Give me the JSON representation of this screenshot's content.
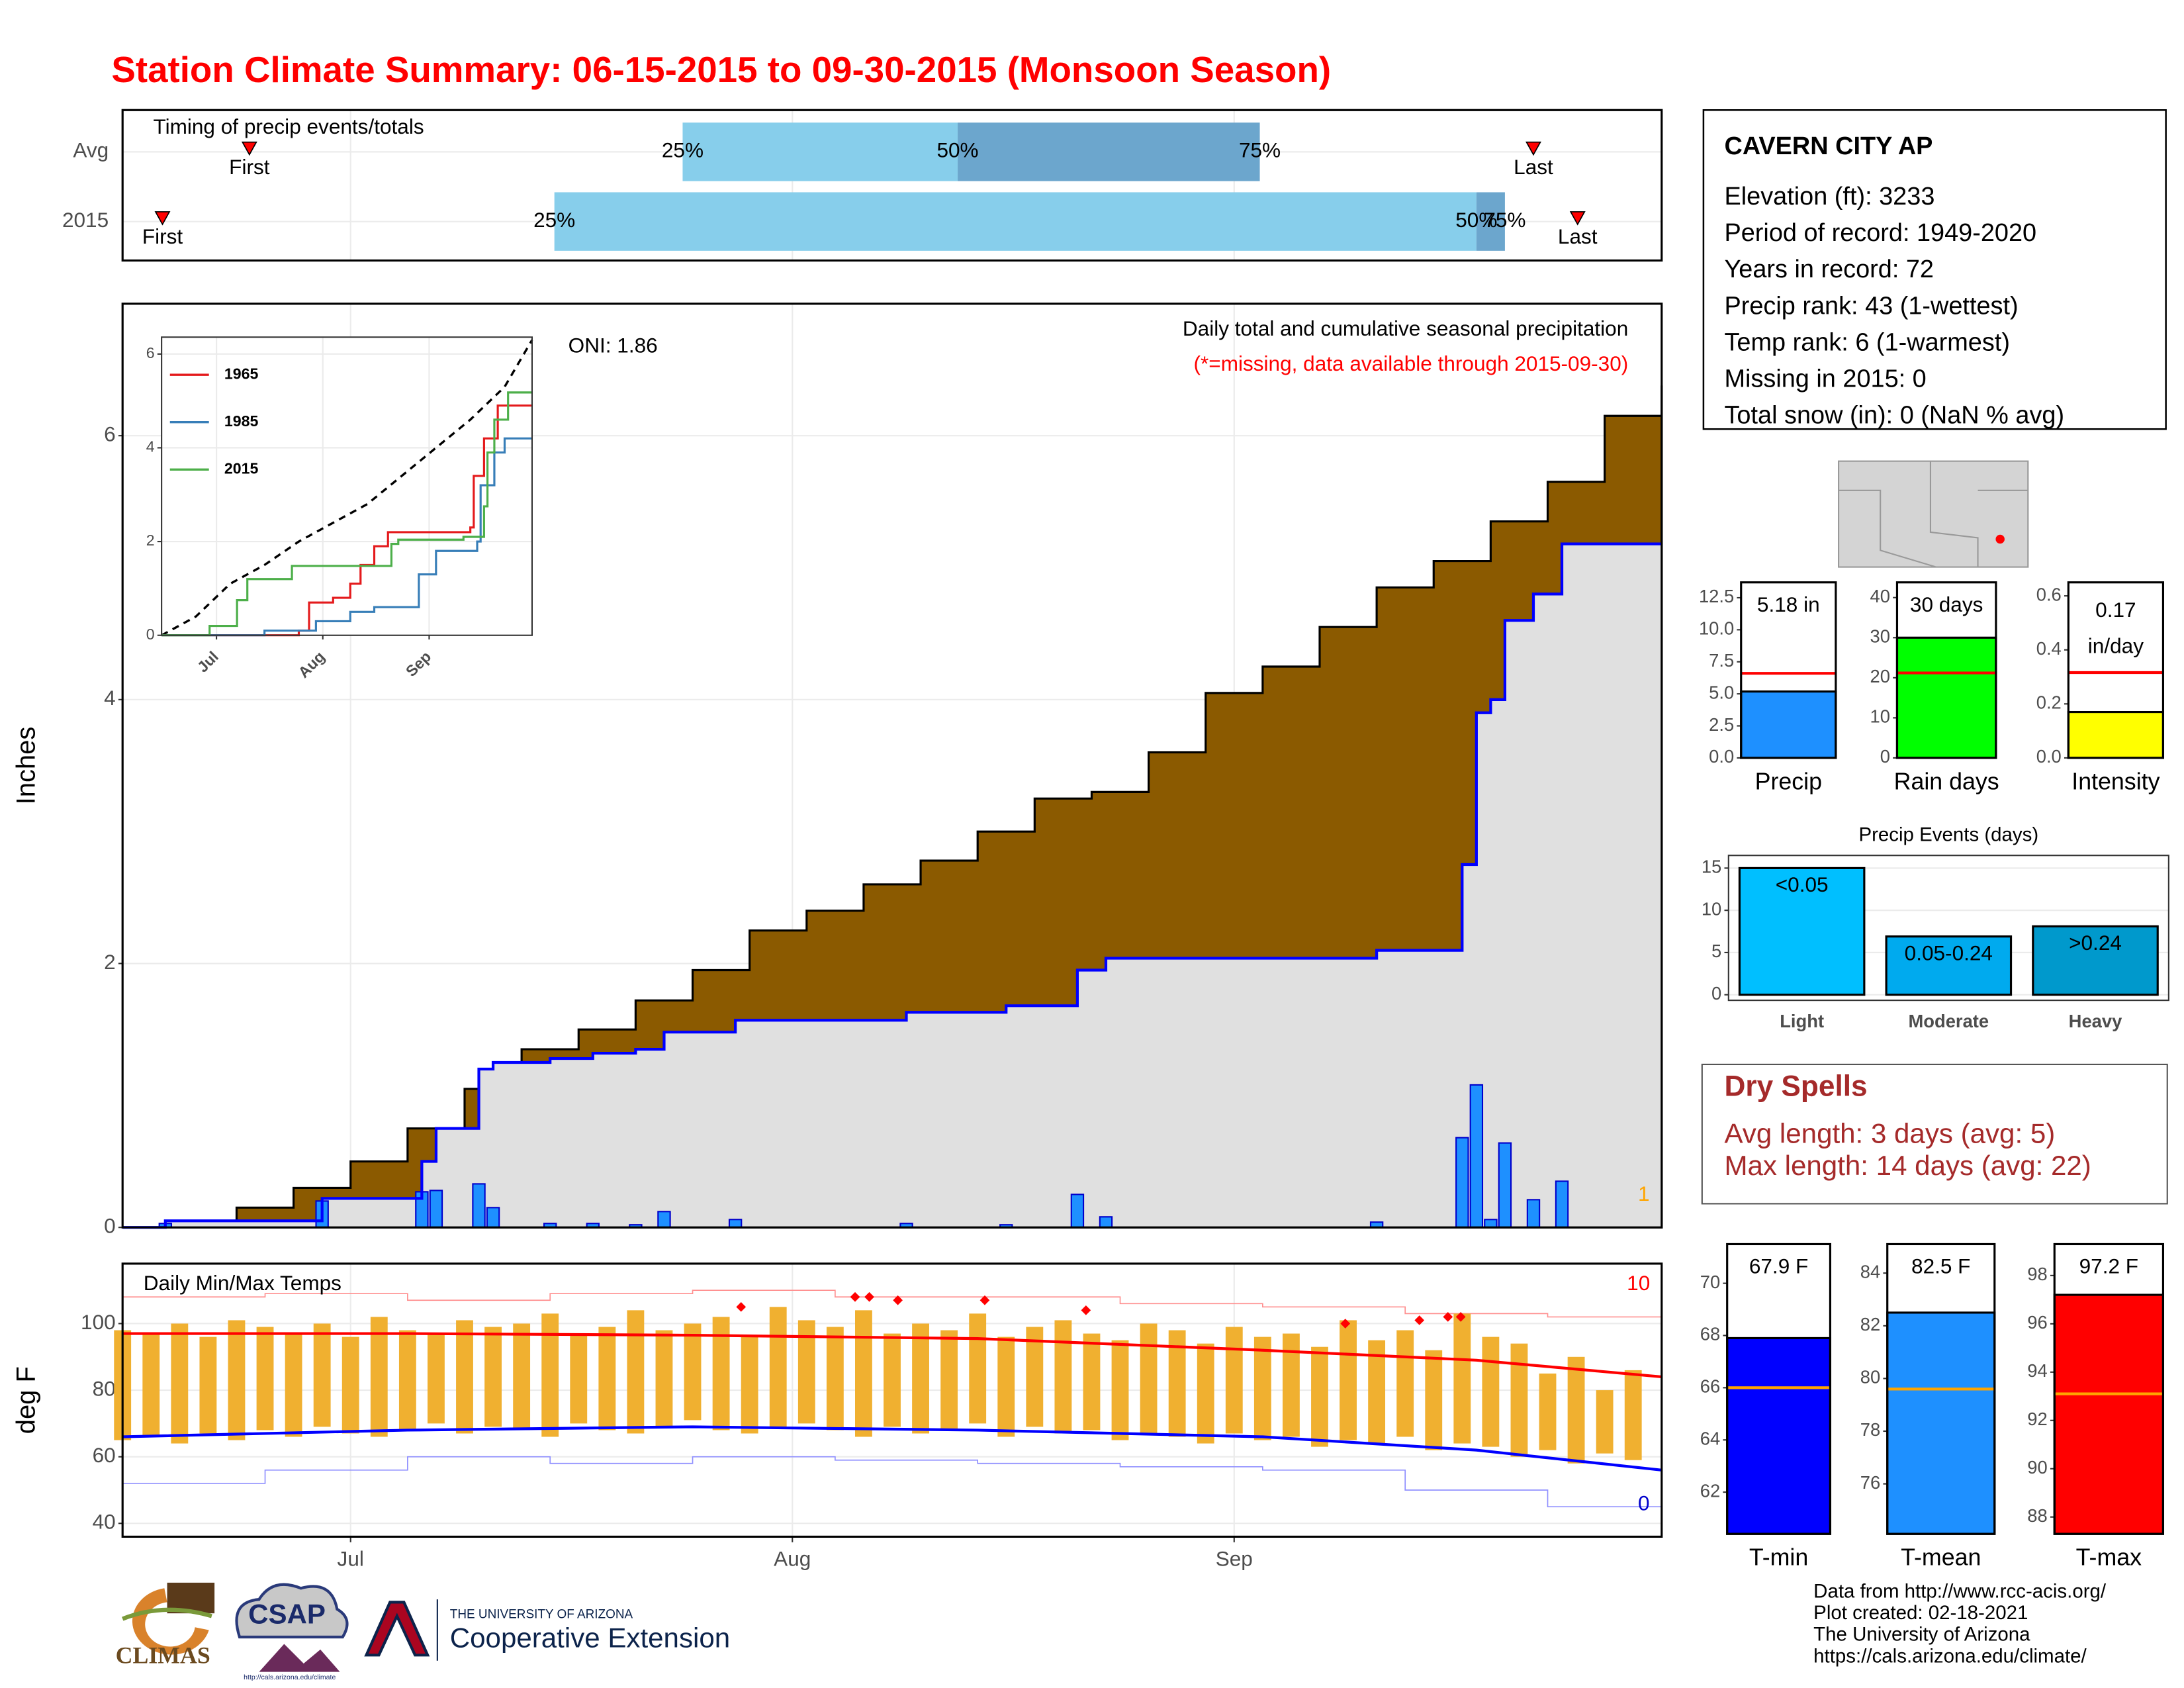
{
  "title": "Station Climate Summary: 06-15-2015 to 09-30-2015 (Monsoon Season)",
  "station": {
    "name": "CAVERN CITY AP",
    "lines": [
      "Elevation (ft): 3233",
      "Period of record: 1949-2020",
      "Years in record: 72",
      "Precip rank: 43 (1-wettest)",
      "Temp rank: 6 (1-warmest)",
      "Missing in 2015: 0",
      "Total snow (in): 0 (NaN % avg)"
    ]
  },
  "dry_spells": {
    "title": "Dry Spells",
    "lines": [
      "Avg length: 3 days (avg: 5)",
      "Max length: 14 days (avg: 22)"
    ]
  },
  "footer": [
    "Data from http://www.rcc-acis.org/",
    "Plot created: 02-18-2021",
    "The University of Arizona",
    "https://cals.arizona.edu/climate/"
  ],
  "logos": {
    "climas": "CLIMAS",
    "csap": "CSAP",
    "csap_url": "http://cals.arizona.edu/climate",
    "university": "THE UNIVERSITY OF ARIZONA",
    "extension": "Cooperative Extension"
  },
  "chart_data": [
    {
      "type": "timing",
      "title": "Timing of precip events/totals",
      "categories": [
        "Avg",
        "2015"
      ],
      "xlim": [
        0,
        108
      ],
      "xticks": [
        16,
        47,
        78
      ],
      "marker_labels": [
        "First",
        "Last"
      ],
      "quartile_labels": [
        "25%",
        "50%",
        "75%"
      ],
      "colors": [
        "#87ceeb",
        "#6ca6cd"
      ],
      "marker_color": "#ff0000",
      "rows": [
        {
          "first": 8.9,
          "last": 99,
          "quartiles": [
            39.3,
            58.6,
            79.8
          ]
        },
        {
          "first": 2.8,
          "last": 102.1,
          "quartiles": [
            30.3,
            95,
            97
          ]
        }
      ]
    },
    {
      "type": "area",
      "title": "Daily total and cumulative seasonal precipitation",
      "subtitle": "(*=missing, data available through 2015-09-30)",
      "annotation": "ONI: 1.86",
      "ylabel": "Inches",
      "missing_count": 1,
      "xlim": [
        0,
        108
      ],
      "xticks": [
        16,
        47,
        78
      ],
      "ylim": [
        0,
        7
      ],
      "yticks": [
        0,
        2,
        4,
        6
      ],
      "grid": true,
      "normal": {
        "color": "#8b5a00",
        "x": [
          0,
          4,
          8,
          12,
          16,
          20,
          24,
          28,
          32,
          36,
          40,
          44,
          48,
          52,
          56,
          60,
          64,
          68,
          72,
          76,
          80,
          84,
          88,
          92,
          96,
          100,
          104,
          108
        ],
        "values": [
          0,
          0.05,
          0.15,
          0.3,
          0.5,
          0.75,
          1.05,
          1.35,
          1.5,
          1.72,
          1.95,
          2.25,
          2.4,
          2.6,
          2.78,
          3.0,
          3.25,
          3.3,
          3.6,
          4.05,
          4.25,
          4.55,
          4.85,
          5.05,
          5.35,
          5.65,
          6.15,
          6.38
        ]
      },
      "cumulative": {
        "color": "#0000ff",
        "fill": "#e0e0e0",
        "x": [
          0,
          3,
          14,
          21,
          22,
          25,
          26,
          30,
          33,
          36,
          38,
          43,
          55,
          62,
          67,
          69,
          88,
          94,
          95,
          96,
          97,
          99,
          101,
          108
        ],
        "values": [
          0,
          0.05,
          0.22,
          0.5,
          0.75,
          1.2,
          1.25,
          1.28,
          1.32,
          1.35,
          1.48,
          1.57,
          1.63,
          1.68,
          1.95,
          2.04,
          2.1,
          2.75,
          3.9,
          4.0,
          4.6,
          4.8,
          5.18,
          5.18
        ]
      },
      "daily": {
        "color": "#1e90ff",
        "x": [
          3,
          14,
          21,
          22,
          25,
          26,
          30,
          33,
          36,
          38,
          43,
          55,
          62,
          67,
          69,
          88,
          94,
          95,
          96,
          97,
          99,
          101
        ],
        "values": [
          0.03,
          0.2,
          0.27,
          0.28,
          0.33,
          0.15,
          0.03,
          0.03,
          0.02,
          0.12,
          0.06,
          0.03,
          0.02,
          0.25,
          0.08,
          0.04,
          0.68,
          1.08,
          0.06,
          0.64,
          0.21,
          0.35
        ]
      }
    },
    {
      "type": "line",
      "legend": "top-left",
      "xlim": [
        0,
        108
      ],
      "ylim": [
        0,
        6.36
      ],
      "yticks": [
        0,
        2,
        4,
        6
      ],
      "grid": true,
      "xticks": [
        {
          "value": 16,
          "label": "Jul"
        },
        {
          "value": 47,
          "label": "Aug"
        },
        {
          "value": 78,
          "label": "Sep"
        }
      ],
      "normal": {
        "color": "#000000",
        "x": [
          0,
          10,
          20,
          30,
          40,
          50,
          60,
          70,
          80,
          90,
          100,
          108
        ],
        "values": [
          0,
          0.4,
          1.1,
          1.5,
          2.0,
          2.4,
          2.8,
          3.4,
          4.0,
          4.6,
          5.3,
          6.3
        ]
      },
      "series": [
        {
          "name": "1965",
          "color": "#e41a1c",
          "x": [
            0,
            40,
            43,
            50,
            55,
            58,
            62,
            66,
            90,
            91,
            94,
            98,
            108
          ],
          "values": [
            0,
            0.1,
            0.7,
            0.8,
            1.1,
            1.5,
            1.9,
            2.2,
            2.3,
            3.4,
            4.2,
            4.9,
            4.9
          ]
        },
        {
          "name": "1985",
          "color": "#377eb8",
          "x": [
            0,
            30,
            45,
            55,
            62,
            75,
            80,
            92,
            93,
            97,
            100,
            108
          ],
          "values": [
            0,
            0.1,
            0.3,
            0.5,
            0.6,
            1.3,
            1.8,
            2.0,
            3.2,
            3.9,
            4.2,
            4.2
          ]
        },
        {
          "name": "2015",
          "color": "#4daf4a",
          "x": [
            0,
            14,
            22,
            25,
            38,
            67,
            69,
            88,
            94,
            95,
            97,
            101,
            108
          ],
          "values": [
            0,
            0.2,
            0.75,
            1.2,
            1.48,
            1.95,
            2.04,
            2.1,
            2.75,
            3.9,
            4.6,
            5.18,
            5.18
          ]
        }
      ]
    },
    {
      "type": "temp-range",
      "title": "Daily Min/Max Temps",
      "ylabel": "deg F",
      "xlim": [
        0,
        108
      ],
      "ylim": [
        36,
        118
      ],
      "yticks": [
        40,
        60,
        80,
        100
      ],
      "grid": true,
      "xticks": [
        {
          "value": 16,
          "label": "Jul"
        },
        {
          "value": 47,
          "label": "Aug"
        },
        {
          "value": 78,
          "label": "Sep"
        }
      ],
      "color": "#f0b030",
      "record_high_count": 10,
      "record_low_count": 0,
      "x": [
        0,
        2,
        4,
        6,
        8,
        10,
        12,
        14,
        16,
        18,
        20,
        22,
        24,
        26,
        28,
        30,
        32,
        34,
        36,
        38,
        40,
        42,
        44,
        46,
        48,
        50,
        52,
        54,
        56,
        58,
        60,
        62,
        64,
        66,
        68,
        70,
        72,
        74,
        76,
        78,
        80,
        82,
        84,
        86,
        88,
        90,
        92,
        94,
        96,
        98,
        100,
        102,
        104,
        106
      ],
      "max": [
        98,
        97,
        100,
        96,
        101,
        99,
        97,
        100,
        96,
        102,
        98,
        97,
        101,
        99,
        100,
        103,
        97,
        99,
        104,
        98,
        100,
        102,
        96,
        105,
        101,
        99,
        104,
        97,
        100,
        98,
        103,
        96,
        99,
        101,
        97,
        95,
        100,
        98,
        94,
        99,
        96,
        97,
        93,
        101,
        95,
        98,
        92,
        103,
        96,
        94,
        85,
        90,
        80,
        86
      ],
      "min": [
        65,
        66,
        64,
        67,
        65,
        68,
        66,
        69,
        67,
        66,
        68,
        70,
        67,
        69,
        68,
        66,
        70,
        68,
        67,
        69,
        71,
        68,
        67,
        69,
        70,
        68,
        66,
        69,
        67,
        68,
        70,
        66,
        69,
        67,
        68,
        65,
        67,
        66,
        64,
        67,
        65,
        66,
        63,
        65,
        64,
        66,
        62,
        64,
        63,
        60,
        62,
        58,
        61,
        59
      ],
      "avg_max": {
        "color": "#ff0000",
        "x": [
          0,
          20,
          40,
          60,
          80,
          95,
          108
        ],
        "values": [
          97,
          97,
          96.5,
          95.5,
          92,
          89,
          84
        ]
      },
      "avg_min": {
        "color": "#0000ff",
        "x": [
          0,
          20,
          40,
          60,
          80,
          95,
          108
        ],
        "values": [
          66,
          68,
          69,
          68,
          66,
          62,
          56
        ]
      },
      "record_max": {
        "color": "#ff9090",
        "x": [
          0,
          10,
          20,
          30,
          40,
          50,
          60,
          70,
          80,
          90,
          100,
          108
        ],
        "values": [
          108,
          109,
          107,
          109,
          110,
          108,
          108,
          106,
          105,
          103,
          102,
          101
        ]
      },
      "record_min": {
        "color": "#9090ff",
        "x": [
          0,
          10,
          20,
          30,
          40,
          50,
          60,
          70,
          80,
          90,
          100,
          108
        ],
        "values": [
          52,
          56,
          60,
          58,
          60,
          59,
          58,
          57,
          56,
          50,
          45,
          43
        ]
      },
      "record_highs": {
        "color": "#ff0000",
        "x": [
          43.4,
          51.4,
          52.4,
          54.4,
          60.5,
          67.6,
          85.8,
          91,
          93,
          93.9
        ],
        "values": [
          105,
          108,
          108,
          107,
          107,
          104,
          100,
          101,
          102,
          102
        ]
      }
    },
    {
      "type": "bar",
      "categories": [
        "Precip"
      ],
      "values": [
        5.18
      ],
      "value_labels": [
        "5.18 in"
      ],
      "average": 6.6,
      "average_color": "#ff0000",
      "colors": [
        "#1e90ff"
      ],
      "ylim": [
        0,
        13.7
      ],
      "yticks": [
        {
          "value": 0,
          "label": "0.0"
        },
        2.5,
        {
          "value": 5,
          "label": "5.0"
        },
        7.5,
        {
          "value": 10,
          "label": "10.0"
        },
        12.5
      ]
    },
    {
      "type": "bar",
      "categories": [
        "Rain days"
      ],
      "values": [
        30
      ],
      "value_labels": [
        "30 days"
      ],
      "average": 21.2,
      "average_color": "#ff0000",
      "colors": [
        "#00ff00"
      ],
      "ylim": [
        0,
        43.8
      ],
      "yticks": [
        0,
        10,
        20,
        30,
        40
      ]
    },
    {
      "type": "bar",
      "categories": [
        "Intensity"
      ],
      "values": [
        0.17
      ],
      "value_labels": [
        "0.17 in/day"
      ],
      "average": 0.316,
      "average_color": "#ff0000",
      "colors": [
        "#ffff00"
      ],
      "ylim": [
        0,
        0.65
      ],
      "yticks": [
        {
          "value": 0,
          "label": "0.0"
        },
        0.2,
        0.4,
        0.6
      ]
    },
    {
      "type": "bar",
      "title": "Precip Events (days)",
      "categories": [
        "Light",
        "Moderate",
        "Heavy"
      ],
      "values": [
        15,
        6.9,
        8.1
      ],
      "bar_labels": [
        "<0.05",
        "0.05-0.24",
        ">0.24"
      ],
      "colors": [
        "#00bfff",
        "#00aaee",
        "#0099cc"
      ],
      "ylim": [
        -0.66,
        16.5
      ],
      "yticks": [
        0,
        5,
        10,
        15
      ],
      "grid": true
    },
    {
      "type": "bar",
      "categories": [
        "T-min"
      ],
      "values": [
        67.9
      ],
      "value_labels": [
        "67.9 F"
      ],
      "average": 66,
      "average_color": "#ffa500",
      "colors": [
        "#0000ff"
      ],
      "ylim": [
        60.4,
        71.5
      ],
      "yticks": [
        62,
        64,
        66,
        68,
        70
      ]
    },
    {
      "type": "bar",
      "categories": [
        "T-mean"
      ],
      "values": [
        82.5
      ],
      "value_labels": [
        "82.5 F"
      ],
      "average": 79.6,
      "average_color": "#ffa500",
      "colors": [
        "#1e90ff"
      ],
      "ylim": [
        74.1,
        85.1
      ],
      "yticks": [
        76,
        78,
        80,
        82,
        84
      ]
    },
    {
      "type": "bar",
      "categories": [
        "T-max"
      ],
      "values": [
        97.2
      ],
      "value_labels": [
        "97.2 F"
      ],
      "average": 93.1,
      "average_color": "#ffa500",
      "colors": [
        "#ff0000"
      ],
      "ylim": [
        87.3,
        99.3
      ],
      "yticks": [
        88,
        90,
        92,
        94,
        96,
        98
      ]
    }
  ]
}
